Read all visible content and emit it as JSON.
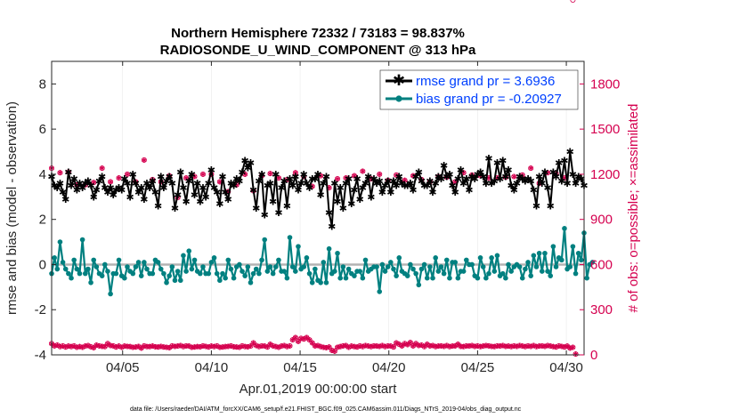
{
  "chart_data": {
    "type": "line",
    "title": "Northern Hemisphere 72332 / 73183 = 98.837%",
    "subtitle": "RADIOSONDE_U_WIND_COMPONENT @ 313 hPa",
    "xlabel": "Apr.01,2019 00:00:00 start",
    "ylabel": "rmse and bias (model - observation)",
    "ylabel_right": "# of obs: o=possible; ×=assimilated",
    "x_range": [
      1,
      31
    ],
    "ylim": [
      -4,
      9
    ],
    "ylim_right": [
      0,
      1950
    ],
    "x_ticks": [
      5,
      10,
      15,
      20,
      25,
      30
    ],
    "x_tick_labels": [
      "04/05",
      "04/10",
      "04/15",
      "04/20",
      "04/25",
      "04/30"
    ],
    "y_ticks": [
      -4,
      -2,
      0,
      2,
      4,
      6,
      8
    ],
    "y_tick_labels": [
      "-4",
      "-2",
      "0",
      "2",
      "4",
      "6",
      "8"
    ],
    "y_right_ticks": [
      0,
      300,
      600,
      900,
      1200,
      1500,
      1800
    ],
    "y_right_tick_labels": [
      "0",
      "300",
      "600",
      "900",
      "1200",
      "1500",
      "1800"
    ],
    "footer": "data file: /Users/raeder/DAI/ATM_forcXX/CAM6_setup/f.e21.FHIST_BGC.f09_025.CAM6assim.011/Diags_NTrS_2019-04/obs_diag_output.nc",
    "colors": {
      "rmse": "#000000",
      "bias": "#008080",
      "obs": "#d5004f",
      "zero": "#b3b3b3"
    },
    "series": [
      {
        "name": "rmse grand pr = 3.6936",
        "values": [
          3.9,
          3.5,
          3.4,
          3.6,
          3.2,
          2.9,
          4.1,
          3.5,
          3.8,
          3.3,
          3.6,
          3.4,
          3.6,
          3.7,
          3.5,
          3.0,
          3.3,
          3.7,
          3.9,
          3.4,
          3.2,
          3.4,
          3.1,
          3.3,
          3.4,
          3.3,
          3.8,
          3.6,
          3.0,
          4.0,
          3.6,
          3.2,
          3.4,
          2.9,
          3.6,
          3.4,
          3.7,
          3.2,
          2.6,
          3.9,
          3.4,
          3.7,
          3.9,
          3.6,
          2.5,
          3.1,
          4.1,
          3.4,
          2.8,
          3.7,
          4.0,
          3.1,
          3.6,
          2.8,
          3.4,
          3.0,
          3.6,
          4.2,
          3.4,
          3.2,
          2.7,
          3.9,
          3.2,
          2.9,
          3.6,
          3.5,
          3.8,
          3.7,
          4.1,
          4.6,
          4.3,
          4.5,
          3.3,
          2.5,
          3.7,
          4.0,
          2.2,
          3.5,
          3.6,
          2.8,
          4.0,
          2.3,
          3.4,
          3.7,
          2.6,
          3.8,
          3.5,
          3.9,
          3.3,
          3.6,
          4.0,
          3.6,
          3.4,
          3.8,
          3.8,
          4.0,
          3.1,
          3.6,
          3.9,
          2.3,
          1.7,
          3.6,
          2.8,
          3.4,
          2.5,
          3.6,
          3.8,
          2.7,
          3.3,
          3.8,
          2.9,
          3.4,
          3.6,
          3.9,
          3.0,
          3.8,
          3.6,
          3.7,
          3.2,
          3.5,
          3.7,
          3.2,
          3.7,
          3.5,
          3.9,
          3.6,
          3.5,
          3.5,
          3.6,
          3.3,
          3.9,
          4.1,
          3.7,
          3.5,
          3.5,
          3.7,
          3.2,
          3.6,
          3.9,
          3.8,
          4.4,
          3.9,
          4.0,
          3.5,
          3.2,
          3.8,
          4.2,
          3.6,
          3.8,
          3.3,
          3.9,
          3.8,
          4.0,
          4.1,
          3.9,
          3.6,
          4.7,
          3.6,
          3.7,
          4.5,
          3.8,
          4.6,
          3.9,
          4.2,
          3.5,
          3.3,
          3.6,
          3.9,
          3.8,
          3.7,
          3.8,
          3.7,
          3.3,
          2.6,
          3.9,
          3.6,
          4.1,
          3.4,
          2.6,
          4.1,
          3.9,
          4.5,
          3.7,
          4.6,
          3.6,
          5.0,
          4.0,
          3.6,
          3.9,
          3.8,
          3.5
        ]
      },
      {
        "name": "bias grand pr = -0.20927",
        "values": [
          -0.4,
          0.3,
          -0.2,
          1.0,
          0.1,
          -0.2,
          -0.4,
          -0.6,
          0.2,
          -0.2,
          -0.4,
          1.1,
          -0.4,
          -0.2,
          -0.8,
          0.2,
          -0.1,
          -0.4,
          -0.5,
          0.0,
          -0.3,
          -1.3,
          -0.4,
          -0.4,
          0.2,
          -0.5,
          -0.6,
          -0.1,
          -0.3,
          -0.4,
          -0.1,
          0.1,
          -0.5,
          0.1,
          -0.2,
          -0.4,
          -0.4,
          0.2,
          0.1,
          -0.2,
          -0.4,
          -0.8,
          -0.5,
          -0.1,
          -0.7,
          -0.3,
          -0.7,
          0.4,
          -0.3,
          0.6,
          -0.2,
          0.2,
          -0.3,
          -0.4,
          -0.1,
          -0.4,
          -0.4,
          0.1,
          0.3,
          -0.4,
          -0.7,
          -0.4,
          -0.6,
          0.2,
          -0.2,
          -0.6,
          -0.1,
          0.0,
          -0.3,
          -0.5,
          -0.1,
          -0.8,
          -0.4,
          -0.2,
          -0.4,
          0.2,
          1.1,
          -0.3,
          -0.1,
          -0.4,
          -0.1,
          0.2,
          -0.3,
          -0.3,
          -0.6,
          1.2,
          -0.1,
          -0.3,
          0.8,
          -0.2,
          -0.1,
          0.3,
          -0.4,
          -0.8,
          -0.2,
          -0.7,
          -0.8,
          0.1,
          -0.8,
          0.7,
          -0.4,
          -0.3,
          0.5,
          -0.6,
          -0.1,
          -0.6,
          -0.2,
          -0.4,
          -0.5,
          -0.3,
          -0.3,
          -0.6,
          0.2,
          -0.3,
          -0.2,
          -0.1,
          -0.1,
          -1.2,
          0.0,
          -0.3,
          -0.1,
          0.1,
          -0.2,
          -0.5,
          0.3,
          -0.3,
          -0.4,
          -0.5,
          0.0,
          -0.2,
          -0.4,
          -0.9,
          -0.2,
          0.0,
          -0.6,
          -0.1,
          -0.6,
          0.3,
          -0.3,
          -0.1,
          -0.4,
          0.2,
          -0.6,
          0.1,
          0.1,
          -0.6,
          -0.3,
          -0.3,
          0.2,
          0.0,
          0.0,
          -0.5,
          -0.6,
          0.3,
          -0.1,
          -0.6,
          -0.4,
          0.3,
          -0.3,
          0.4,
          -0.5,
          -0.4,
          -0.6,
          0.0,
          -0.3,
          -0.1,
          0.0,
          -0.1,
          -0.6,
          -0.2,
          0.1,
          -0.5,
          0.4,
          -0.1,
          0.5,
          -0.3,
          0.5,
          -0.3,
          -0.5,
          0.8,
          -0.1,
          0.3,
          0.2,
          1.6,
          -0.2,
          -0.1,
          0.8,
          -0.4,
          0.5,
          0.2,
          1.4,
          -0.6,
          0.0,
          0.1
        ]
      },
      {
        "name": "possible obs",
        "values": [
          75,
          60,
          65,
          55,
          60,
          52,
          58,
          55,
          60,
          50,
          55,
          50,
          58,
          62,
          54,
          48,
          64,
          60,
          56,
          55,
          75,
          62,
          60,
          52,
          58,
          50,
          58,
          56,
          55,
          50,
          52,
          56,
          45,
          60,
          55,
          55,
          58,
          54,
          52,
          56,
          52,
          50,
          48,
          60,
          56,
          58,
          62,
          55,
          60,
          58,
          50,
          52,
          55,
          54,
          60,
          56,
          52,
          58,
          55,
          60,
          50,
          52,
          55,
          56,
          60,
          54,
          52,
          50,
          60,
          55,
          54,
          58,
          80,
          62,
          55,
          60,
          58,
          52,
          70,
          60,
          55,
          50,
          58,
          62,
          55,
          60,
          100,
          115,
          90,
          110,
          105,
          115,
          100,
          80,
          60,
          62,
          55,
          50,
          48,
          52,
          30,
          25,
          50,
          55,
          60,
          62,
          50,
          58,
          55,
          52,
          60,
          55,
          62,
          58,
          55,
          60,
          58,
          56,
          62,
          55,
          60,
          58,
          52,
          80,
          70,
          60,
          75,
          68,
          82,
          60,
          75,
          62,
          65,
          55,
          70,
          60,
          62,
          55,
          58,
          60,
          56,
          62,
          55,
          58,
          60,
          70,
          56,
          55,
          60,
          58,
          62,
          56,
          60,
          55,
          58,
          62,
          60,
          56,
          55,
          60,
          58,
          62,
          56,
          58,
          55,
          60,
          56,
          62,
          58,
          55,
          60,
          56,
          62,
          55,
          58,
          60,
          56,
          62,
          58,
          55,
          52,
          60,
          56,
          52,
          58,
          45,
          50,
          5
        ]
      },
      {
        "name": "assimilated obs",
        "values": [
          1240,
          1170,
          1175,
          1210,
          1210,
          1140,
          1215,
          1140,
          1165,
          1130,
          1180,
          1215,
          1130,
          1170,
          1240,
          1145,
          1110,
          1175,
          1240,
          1105,
          1230,
          1150,
          1165,
          1175,
          1175,
          1110,
          1170,
          1200,
          1205,
          1190,
          1150,
          1150,
          1240,
          1295,
          1170,
          1175,
          1165,
          1095,
          1235,
          1150,
          1155,
          1220,
          1190,
          1160,
          1190,
          1045,
          1130,
          1055,
          1175,
          1185,
          1160,
          1185,
          1165,
          1250,
          1200,
          1125,
          1150,
          1200,
          1215,
          1190,
          1150,
          1195,
          1165,
          1085,
          1170,
          1155,
          1130,
          1165,
          1140,
          1200,
          1200,
          1180,
          1090,
          1165,
          1185,
          1190,
          1150,
          1135,
          1205,
          1200,
          1160,
          1175,
          1120,
          1140,
          1165,
          1185,
          1210,
          1210,
          1170,
          1100,
          1185,
          1160,
          1200,
          1120,
          1200,
          1155,
          1190,
          1090,
          1195,
          1110,
          1160,
          1115,
          1170,
          1135,
          1150,
          1175,
          1160,
          1115,
          1190,
          1140,
          1195,
          1220,
          1175,
          1185,
          1170,
          1210,
          1155,
          1200,
          1225,
          1195,
          1160,
          1180,
          1225,
          1195,
          1165,
          1215,
          1160,
          1175,
          1235,
          1190,
          1190,
          1180,
          1165,
          1195,
          1185,
          1150,
          1250,
          1195,
          1185,
          1225,
          1225,
          1180,
          1140,
          1195,
          1150,
          1190,
          1175,
          1210,
          1220,
          1175,
          1195,
          1180,
          1185,
          1190,
          1200,
          1220,
          1175,
          1180,
          1215,
          1175,
          1210,
          1185,
          1180,
          1160,
          1195,
          1185,
          1175,
          1165,
          1195,
          1155,
          1210,
          1240,
          1185,
          1195,
          1140,
          1210,
          1180,
          1210,
          1250,
          1175,
          1205,
          1195,
          1185,
          1175
        ]
      }
    ]
  }
}
